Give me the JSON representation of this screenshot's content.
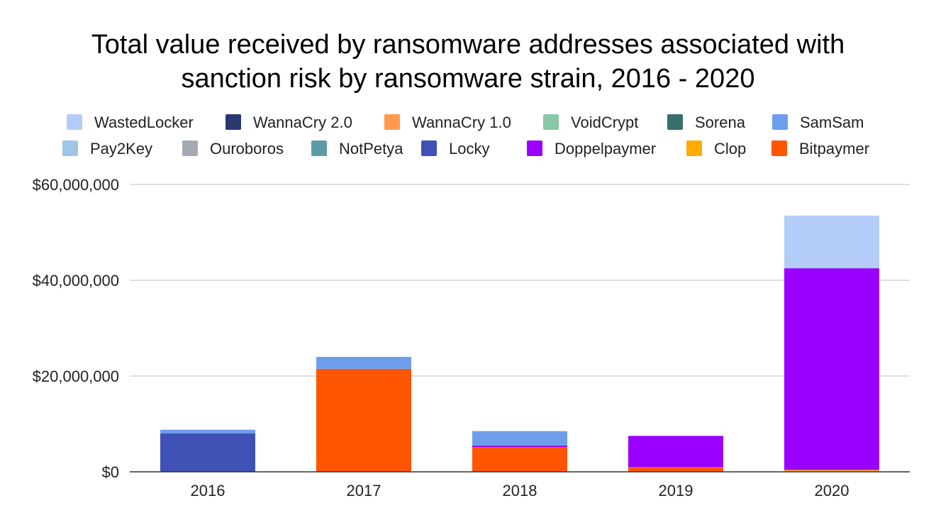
{
  "chart_data": {
    "type": "bar",
    "stacked": true,
    "title_lines": [
      "Total value received by ransomware addresses associated with",
      "sanction risk by ransomware strain, 2016 - 2020"
    ],
    "xlabel": "",
    "ylabel": "",
    "categories": [
      "2016",
      "2017",
      "2018",
      "2019",
      "2020"
    ],
    "ylim": [
      0,
      60000000
    ],
    "yticks": [
      0,
      20000000,
      40000000,
      60000000
    ],
    "ytick_labels": [
      "$0",
      "$20,000,000",
      "$40,000,000",
      "$60,000,000"
    ],
    "grid": true,
    "legend_position": "top",
    "legend": [
      "WastedLocker",
      "WannaCry 2.0",
      "WannaCry 1.0",
      "VoidCrypt",
      "Sorena",
      "SamSam",
      "Pay2Key",
      "Ouroboros",
      "NotPetya",
      "Locky",
      "Doppelpaymer",
      "Clop",
      "Bitpaymer"
    ],
    "series": [
      {
        "name": "Bitpaymer",
        "color": "#ff5500",
        "values": [
          0,
          21500000,
          5200000,
          1000000,
          0
        ]
      },
      {
        "name": "Clop",
        "color": "#ffab00",
        "values": [
          0,
          0,
          0,
          0,
          400000
        ]
      },
      {
        "name": "Doppelpaymer",
        "color": "#9900ff",
        "values": [
          0,
          0,
          300000,
          6500000,
          42100000
        ]
      },
      {
        "name": "Locky",
        "color": "#3f51b5",
        "values": [
          8000000,
          0,
          0,
          0,
          0
        ]
      },
      {
        "name": "NotPetya",
        "color": "#5e9ba8",
        "values": [
          0,
          0,
          0,
          0,
          0
        ]
      },
      {
        "name": "Ouroboros",
        "color": "#a4aab4",
        "values": [
          0,
          0,
          0,
          0,
          0
        ]
      },
      {
        "name": "Pay2Key",
        "color": "#9fc5e8",
        "values": [
          0,
          0,
          0,
          0,
          200000
        ]
      },
      {
        "name": "SamSam",
        "color": "#6d9eeb",
        "values": [
          800000,
          2500000,
          3000000,
          0,
          0
        ]
      },
      {
        "name": "Sorena",
        "color": "#37706a",
        "values": [
          0,
          0,
          0,
          0,
          0
        ]
      },
      {
        "name": "VoidCrypt",
        "color": "#86c8a7",
        "values": [
          0,
          0,
          0,
          0,
          0
        ]
      },
      {
        "name": "WannaCry 1.0",
        "color": "#ff9a4d",
        "values": [
          0,
          0,
          0,
          0,
          0
        ]
      },
      {
        "name": "WannaCry 2.0",
        "color": "#283870",
        "values": [
          0,
          0,
          0,
          0,
          0
        ]
      },
      {
        "name": "WastedLocker",
        "color": "#b4cdf8",
        "values": [
          0,
          0,
          0,
          0,
          10800000
        ]
      }
    ]
  }
}
